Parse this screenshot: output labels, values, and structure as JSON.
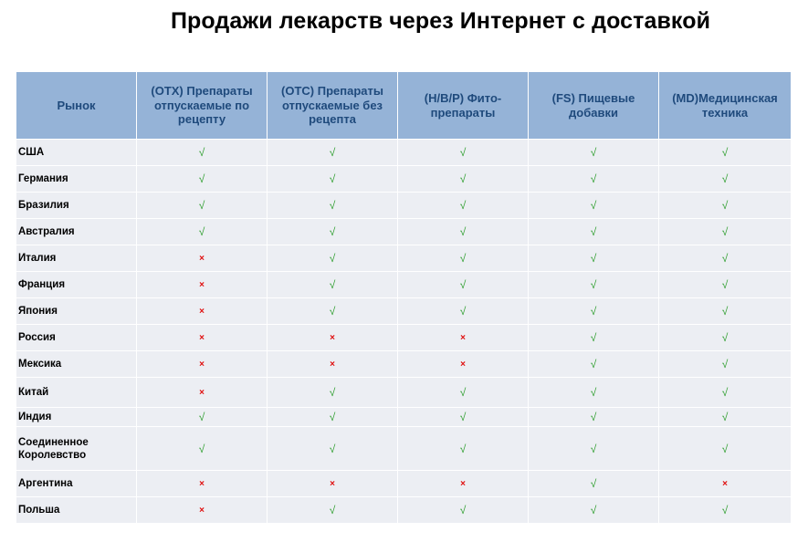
{
  "title": "Продажи лекарств через Интернет с доставкой",
  "header": {
    "market": "Рынок",
    "otx": "(OTX)  Препараты отпускаемые по рецепту",
    "otc": "(OTC) Препараты отпускаемые без рецепта",
    "hbp": "(H/B/P) Фито-препараты",
    "fs": "(FS) Пищевые добавки",
    "md": "(MD)Медицинская техника"
  },
  "symbols": {
    "yes": "√",
    "no": "×"
  },
  "colors": {
    "header_bg": "#95b3d7",
    "header_text": "#1f4a7c",
    "row_bg": "#eceef3",
    "yes": "#2e9e2e",
    "no": "#e01010"
  },
  "rows": [
    {
      "country": "США",
      "marks": [
        "√",
        "√",
        "√",
        "√",
        "√"
      ]
    },
    {
      "country": "Германия",
      "marks": [
        "√",
        "√",
        "√",
        "√",
        "√"
      ]
    },
    {
      "country": "Бразилия",
      "marks": [
        "√",
        "√",
        "√",
        "√",
        "√"
      ]
    },
    {
      "country": "Австралия",
      "marks": [
        "√",
        "√",
        "√",
        "√",
        "√"
      ]
    },
    {
      "country": "Италия",
      "marks": [
        "×",
        "√",
        "√",
        "√",
        "√"
      ]
    },
    {
      "country": "Франция",
      "marks": [
        "×",
        "√",
        "√",
        "√",
        "√"
      ]
    },
    {
      "country": "Япония",
      "marks": [
        "×",
        "√",
        "√",
        "√",
        "√"
      ]
    },
    {
      "country": "Россия",
      "marks": [
        "×",
        "×",
        "×",
        "√",
        "√"
      ]
    },
    {
      "country": "Мексика",
      "marks": [
        "×",
        "×",
        "×",
        "√",
        "√"
      ]
    },
    {
      "country": "Китай",
      "marks": [
        "×",
        "√",
        "√",
        "√",
        "√"
      ]
    },
    {
      "country": "Индия",
      "marks": [
        "√",
        "√",
        "√",
        "√",
        "√"
      ]
    },
    {
      "country": "Соединенное Королевство",
      "marks": [
        "√",
        "√",
        "√",
        "√",
        "√"
      ]
    },
    {
      "country": "Аргентина",
      "marks": [
        "×",
        "×",
        "×",
        "√",
        "×"
      ]
    },
    {
      "country": "Польша",
      "marks": [
        "×",
        "√",
        "√",
        "√",
        "√"
      ]
    }
  ]
}
